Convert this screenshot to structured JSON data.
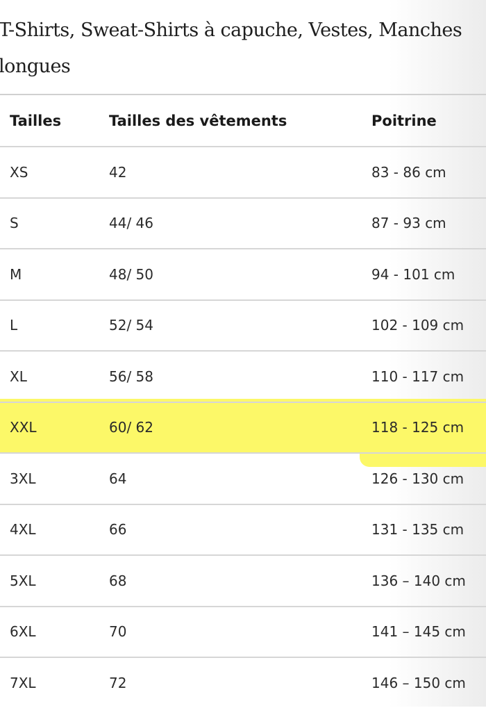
{
  "title": "T-Shirts, Sweat-Shirts à capuche, Vestes, Manches longues",
  "highlight_color": "#fcf868",
  "highlighted_row": "XXL",
  "table": {
    "headers": [
      "Tailles",
      "Tailles des vêtements",
      "Poitrine"
    ],
    "rows": [
      [
        "XS",
        "42",
        "83 - 86 cm"
      ],
      [
        "S",
        "44/ 46",
        "87 - 93 cm"
      ],
      [
        "M",
        "48/ 50",
        "94 - 101 cm"
      ],
      [
        "L",
        "52/ 54",
        "102 - 109 cm"
      ],
      [
        "XL",
        "56/ 58",
        "110 - 117 cm"
      ],
      [
        "XXL",
        "60/ 62",
        "118 - 125 cm"
      ],
      [
        "3XL",
        "64",
        "126 - 130 cm"
      ],
      [
        "4XL",
        "66",
        "131 - 135 cm"
      ],
      [
        "5XL",
        "68",
        "136 – 140 cm"
      ],
      [
        "6XL",
        "70",
        "141 – 145 cm"
      ],
      [
        "7XL",
        "72",
        "146 – 150 cm"
      ]
    ]
  }
}
